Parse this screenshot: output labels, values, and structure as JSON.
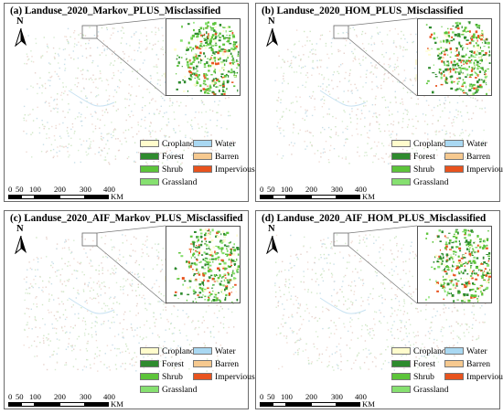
{
  "panels": [
    {
      "title": "(a) Landuse_2020_Markov_PLUS_Misclassified"
    },
    {
      "title": "(b) Landuse_2020_HOM_PLUS_Misclassified"
    },
    {
      "title": "(c) Landuse_2020_AIF_Markov_PLUS_Misclassified"
    },
    {
      "title": "(d) Landuse_2020_AIF_HOM_PLUS_Misclassified"
    }
  ],
  "north_label": "N",
  "legend": {
    "left": [
      {
        "label": "Cropland",
        "color": "#fffccc"
      },
      {
        "label": "Forest",
        "color": "#2e8b2e"
      },
      {
        "label": "Shrub",
        "color": "#5cc43a"
      },
      {
        "label": "Grassland",
        "color": "#86e070"
      }
    ],
    "right": [
      {
        "label": "Water",
        "color": "#a9d8f2"
      },
      {
        "label": "Barren",
        "color": "#f6c98f"
      },
      {
        "label": "Impervious",
        "color": "#e8531e"
      }
    ]
  },
  "scale_bar": {
    "ticks": [
      "0",
      "50",
      "100",
      "200",
      "300",
      "400"
    ],
    "unit": "KM"
  }
}
